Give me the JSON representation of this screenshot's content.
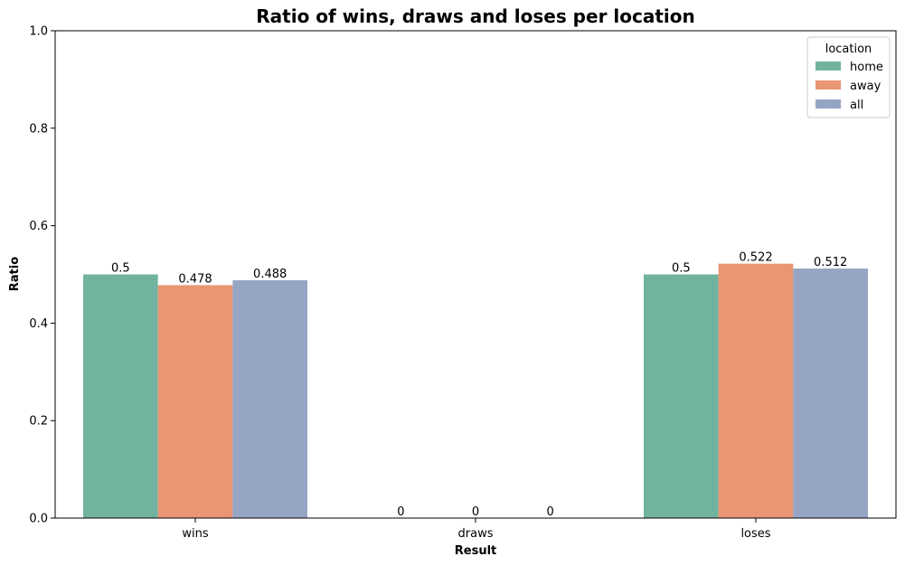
{
  "chart_data": {
    "type": "bar",
    "title": "Ratio of wins, draws and loses per location",
    "xlabel": "Result",
    "ylabel": "Ratio",
    "categories": [
      "wins",
      "draws",
      "loses"
    ],
    "ylim": [
      0,
      1.0
    ],
    "yticks": [
      "0.0",
      "0.2",
      "0.4",
      "0.6",
      "0.8",
      "1.0"
    ],
    "grid": false,
    "legend": {
      "title": "location",
      "placement": "top-right"
    },
    "series": [
      {
        "name": "home",
        "color": "#72b39f",
        "values": [
          0.5,
          0,
          0.5
        ],
        "labels": [
          "0.5",
          "0",
          "0.5"
        ]
      },
      {
        "name": "away",
        "color": "#e89674",
        "values": [
          0.478,
          0,
          0.522
        ],
        "labels": [
          "0.478",
          "0",
          "0.522"
        ]
      },
      {
        "name": "all",
        "color": "#95a5c3",
        "values": [
          0.488,
          0,
          0.512
        ],
        "labels": [
          "0.488",
          "0",
          "0.512"
        ]
      }
    ]
  }
}
